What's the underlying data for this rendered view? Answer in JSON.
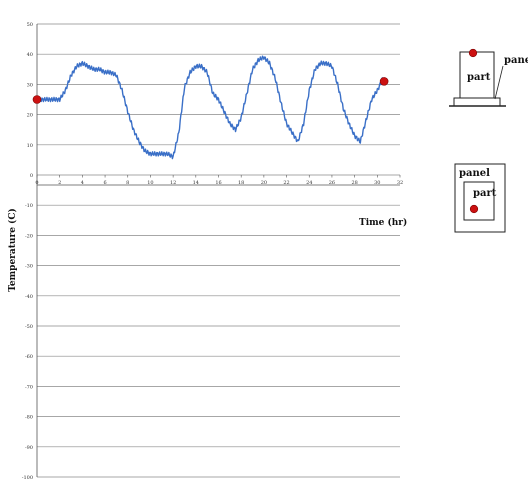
{
  "chart_data": {
    "type": "line",
    "xlabel": "Time (hr)",
    "ylabel": "Temperature (C)",
    "xlim": [
      0,
      32
    ],
    "ylim": [
      -100,
      50
    ],
    "x_ticks": [
      0,
      2,
      4,
      6,
      8,
      10,
      12,
      14,
      16,
      18,
      20,
      22,
      24,
      26,
      28,
      30,
      32
    ],
    "y_ticks": [
      50,
      40,
      30,
      20,
      10,
      0,
      -10,
      -20,
      -30,
      -40,
      -50,
      -60,
      -70,
      -80,
      -90,
      -100
    ],
    "grid": true,
    "series": [
      {
        "color": "#3a6fc7",
        "x": [
          0,
          0.5,
          1,
          1.5,
          2,
          2.5,
          3,
          3.5,
          4,
          4.5,
          5,
          5.5,
          6,
          6.5,
          7,
          7.5,
          8,
          8.5,
          9,
          9.5,
          10,
          10.5,
          11,
          11.5,
          12,
          12.5,
          13,
          13.5,
          14,
          14.5,
          15,
          15.5,
          16,
          16.5,
          17,
          17.5,
          18,
          18.5,
          19,
          19.5,
          20,
          20.5,
          21,
          21.5,
          22,
          22.5,
          23,
          23.5,
          24,
          24.5,
          25,
          25.5,
          26,
          26.5,
          27,
          27.5,
          28,
          28.5,
          29,
          29.5,
          30,
          30.5
        ],
        "y": [
          25,
          25,
          25,
          25,
          25,
          28,
          33,
          36,
          37,
          36,
          35,
          35,
          34,
          34,
          33,
          28,
          21,
          15,
          11,
          8,
          7,
          7,
          7,
          7,
          6,
          14,
          29,
          34,
          36,
          36,
          34,
          27,
          25,
          21,
          17,
          15,
          19,
          27,
          35,
          38,
          39,
          37,
          32,
          24,
          17,
          14,
          11,
          17,
          28,
          35,
          37,
          37,
          36,
          30,
          22,
          17,
          13,
          11,
          18,
          25,
          28,
          32
        ]
      },
      {
        "color": "#cc1111",
        "x": [
          0,
          30.6
        ],
        "y": [
          25,
          31
        ]
      }
    ]
  },
  "diagram_top": {
    "part_label": "part",
    "panel_label": "panel"
  },
  "diagram_bottom": {
    "panel_label": "panel",
    "part_label": "part"
  }
}
